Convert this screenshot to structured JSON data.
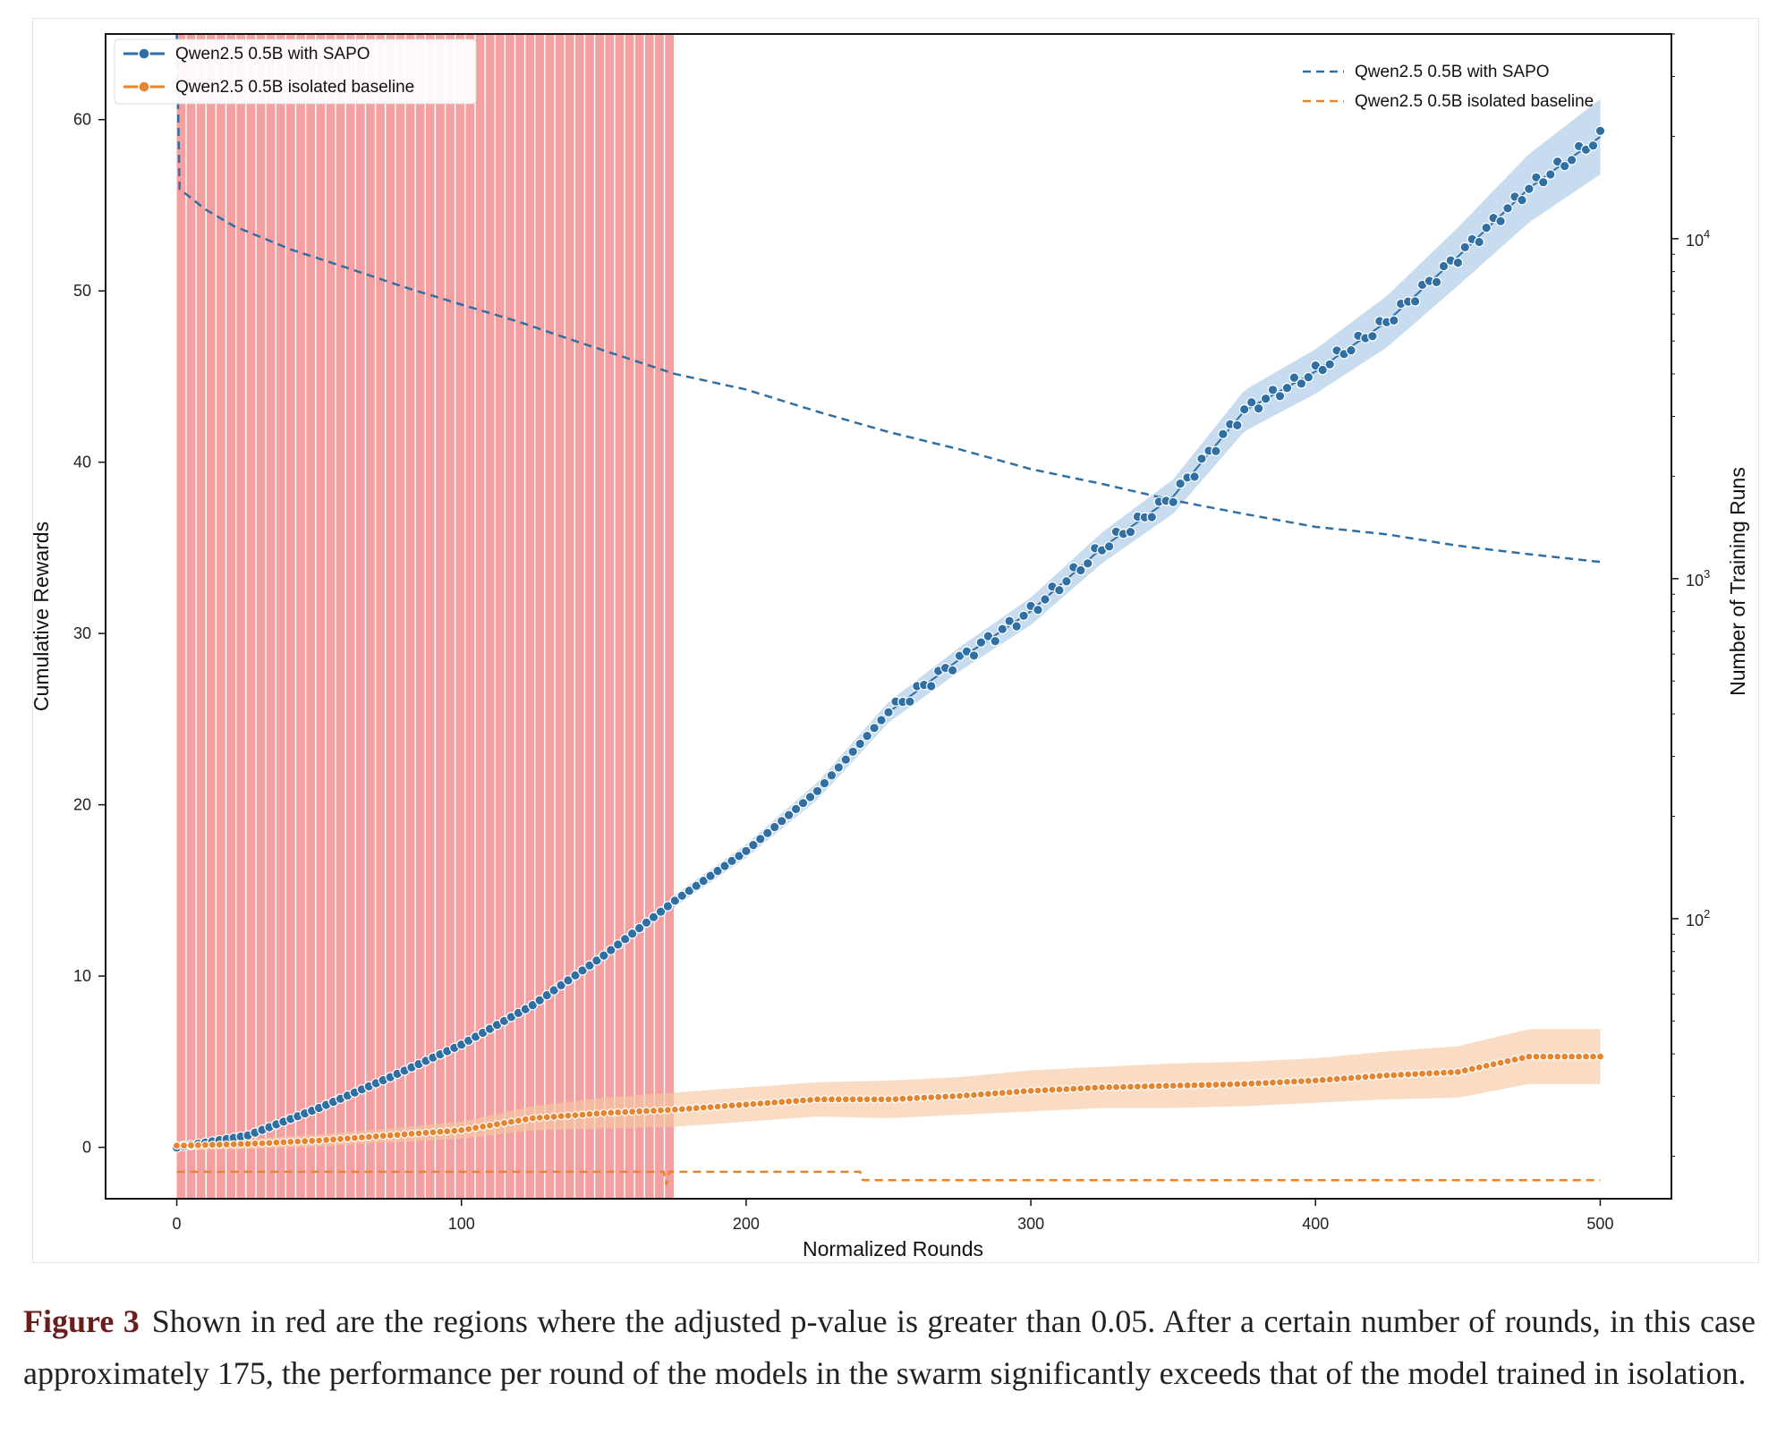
{
  "chart_data": {
    "type": "line",
    "xlabel": "Normalized Rounds",
    "ylabel": "Cumulative Rewards",
    "y2label": "Number of Training Runs",
    "xlim": [
      -25,
      525
    ],
    "ylim": [
      -3,
      65
    ],
    "y2lim_log": [
      15,
      40000
    ],
    "x_ticks": [
      0,
      100,
      200,
      300,
      400,
      500
    ],
    "y_ticks": [
      0,
      10,
      20,
      30,
      40,
      50,
      60
    ],
    "y2_ticks": [
      {
        "value": 100,
        "base": "10",
        "exp": "2"
      },
      {
        "value": 1000,
        "base": "10",
        "exp": "3"
      },
      {
        "value": 10000,
        "base": "10",
        "exp": "4"
      }
    ],
    "shaded_region": {
      "label": "adjusted p-value > 0.05",
      "x_start": 0,
      "x_end": 175,
      "color": "#f4a0a0"
    },
    "cumulative_series": [
      {
        "name": "Qwen2.5 0.5B with SAPO",
        "color": "#2f6fa4",
        "band_color": "#a9c9e6",
        "x": [
          0,
          25,
          50,
          75,
          100,
          125,
          150,
          175,
          200,
          225,
          250,
          275,
          300,
          325,
          350,
          375,
          400,
          425,
          450,
          475,
          500
        ],
        "y": [
          0,
          0.7,
          2.3,
          4.1,
          6.0,
          8.3,
          11.2,
          14.4,
          17.3,
          20.8,
          25.4,
          28.5,
          31.3,
          35.0,
          38.0,
          43.0,
          45.3,
          48.2,
          52.0,
          56.0,
          59.0
        ],
        "band": [
          0,
          0.05,
          0.1,
          0.15,
          0.2,
          0.25,
          0.3,
          0.35,
          0.4,
          0.5,
          0.6,
          0.7,
          0.8,
          0.9,
          1.0,
          1.2,
          1.3,
          1.5,
          1.7,
          2.0,
          2.2
        ]
      },
      {
        "name": "Qwen2.5 0.5B isolated baseline",
        "color": "#e5852f",
        "band_color": "#f6caa3",
        "x": [
          0,
          25,
          50,
          75,
          100,
          125,
          150,
          175,
          200,
          225,
          250,
          275,
          300,
          325,
          350,
          375,
          400,
          425,
          450,
          475,
          500
        ],
        "y": [
          0.1,
          0.2,
          0.4,
          0.7,
          1.0,
          1.7,
          2.0,
          2.2,
          2.5,
          2.8,
          2.8,
          3.0,
          3.3,
          3.5,
          3.6,
          3.7,
          3.9,
          4.2,
          4.4,
          5.3,
          5.3
        ],
        "band": [
          0.3,
          0.3,
          0.35,
          0.4,
          0.5,
          0.7,
          0.9,
          1.0,
          1.0,
          1.0,
          1.1,
          1.1,
          1.2,
          1.2,
          1.3,
          1.3,
          1.3,
          1.4,
          1.5,
          1.6,
          1.6
        ]
      }
    ],
    "training_runs_series": [
      {
        "name": "Qwen2.5 0.5B with SAPO",
        "color": "#2f6fa4",
        "style": "dashed",
        "x": [
          0,
          1,
          10,
          20,
          40,
          60,
          80,
          100,
          120,
          140,
          160,
          175,
          200,
          225,
          250,
          275,
          300,
          325,
          350,
          375,
          400,
          425,
          450,
          475,
          500
        ],
        "y": [
          40000,
          14000,
          12200,
          10900,
          9300,
          8200,
          7200,
          6400,
          5700,
          5000,
          4400,
          4000,
          3600,
          3100,
          2700,
          2400,
          2100,
          1900,
          1700,
          1550,
          1420,
          1350,
          1250,
          1180,
          1120
        ]
      },
      {
        "name": "Qwen2.5 0.5B isolated baseline",
        "color": "#e5852f",
        "style": "dashed",
        "x": [
          0,
          170,
          171,
          172,
          173,
          240,
          241,
          500
        ],
        "y": [
          18,
          18,
          18,
          16.5,
          18,
          18,
          17,
          17
        ]
      }
    ],
    "legend_left": {
      "position": "top-left",
      "entries": [
        "Qwen2.5 0.5B with SAPO",
        "Qwen2.5 0.5B isolated baseline"
      ]
    },
    "legend_right": {
      "position": "top-right",
      "entries": [
        "Qwen2.5 0.5B with SAPO",
        "Qwen2.5 0.5B isolated baseline"
      ]
    }
  },
  "caption": {
    "label": "Figure 3",
    "text": "Shown in red are the regions where the adjusted p-value is greater than 0.05. After a certain number of rounds, in this case approximately 175, the performance per round of the models in the swarm significantly exceeds that of the model trained in isolation."
  }
}
